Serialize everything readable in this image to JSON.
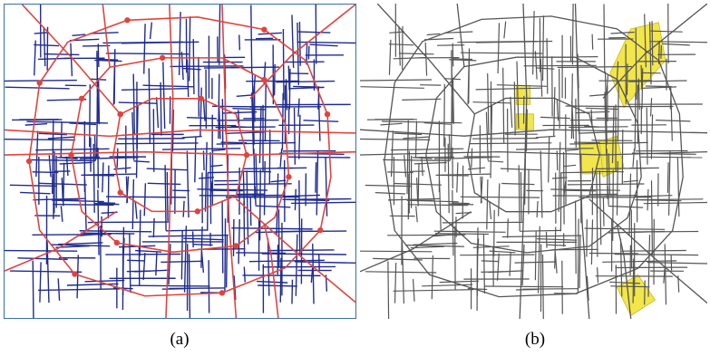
{
  "figure": {
    "panels": [
      {
        "caption": "(a)",
        "colors": {
          "major_roads": "#e0443c",
          "minor_roads": "#1f2b8f",
          "intersections": "#e0443c",
          "border": "#3a6ea5"
        },
        "icons": [
          "road-network-map",
          "intersection-node-markers"
        ]
      },
      {
        "caption": "(b)",
        "colors": {
          "roads": "#555555",
          "highlighted_regions": "#f2e64a"
        },
        "icons": [
          "road-network-map",
          "highlighted-region-polygons"
        ]
      }
    ]
  }
}
